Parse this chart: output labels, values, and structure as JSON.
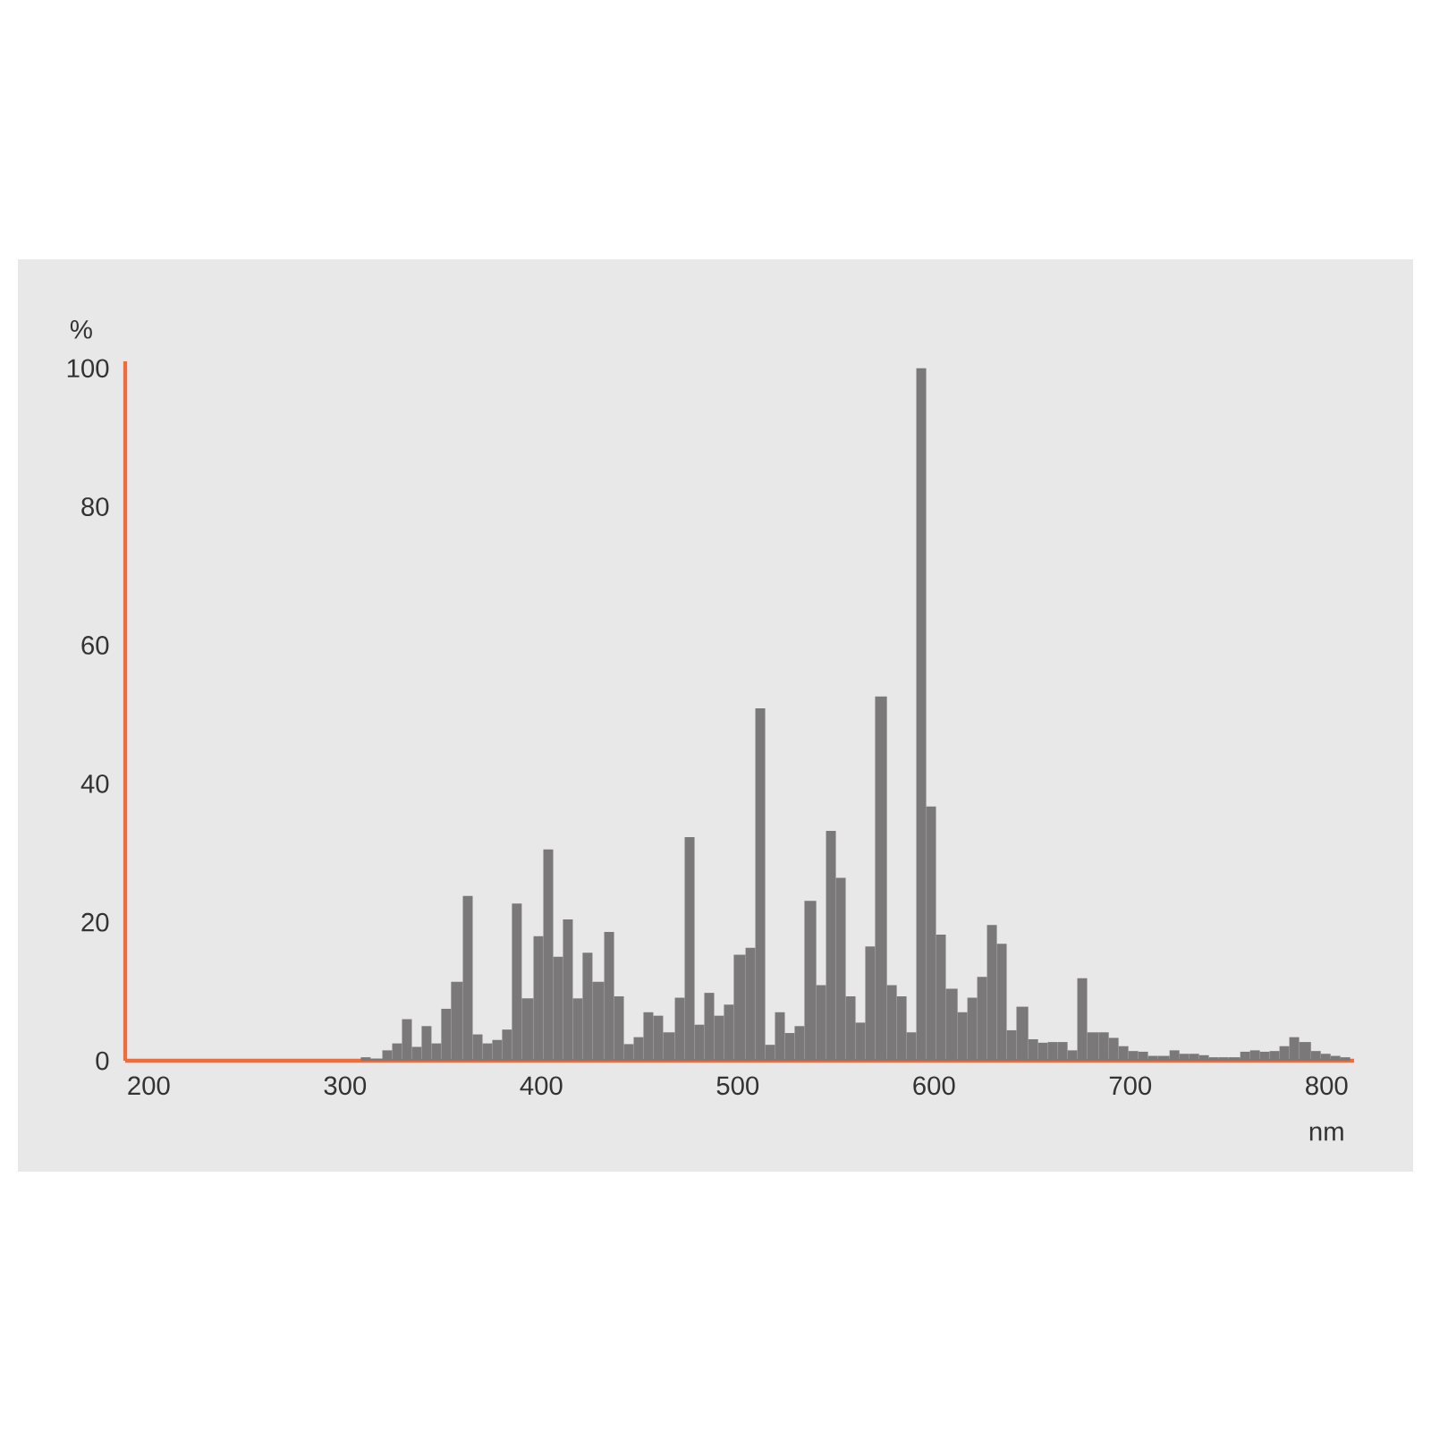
{
  "chart_data": {
    "type": "histogram",
    "xlabel": "nm",
    "ylabel": "%",
    "bins": [
      308,
      313,
      319,
      324,
      329,
      334,
      339,
      344,
      349,
      354,
      360,
      365,
      370,
      375,
      380,
      385,
      390,
      396,
      401,
      406,
      411,
      416,
      421,
      426,
      432,
      437,
      442,
      447,
      452,
      457,
      462,
      468,
      473,
      478,
      483,
      488,
      493,
      498,
      504,
      509,
      514,
      519,
      524,
      529,
      534,
      540,
      545,
      550,
      555,
      560,
      565,
      570,
      576,
      581,
      586,
      591,
      596,
      601,
      606,
      612,
      617,
      622,
      627,
      632,
      637,
      642,
      648,
      653,
      658,
      663,
      668,
      673,
      678,
      684,
      689,
      694,
      699,
      704,
      709,
      714,
      720,
      725,
      730,
      735,
      740,
      745,
      750,
      756,
      761,
      766,
      771,
      776,
      781,
      786,
      792,
      797,
      802,
      807,
      812
    ],
    "values": [
      0.5,
      0.3,
      1.5,
      2.5,
      6,
      2,
      5,
      2.5,
      7.5,
      11.4,
      23.8,
      3.8,
      2.5,
      3,
      4.5,
      22.7,
      9,
      18,
      30.5,
      15,
      20.4,
      9,
      15.6,
      11.4,
      18.6,
      9.3,
      2.4,
      3.4,
      7,
      6.5,
      4.1,
      9.1,
      32.3,
      5.2,
      9.8,
      6.5,
      8.1,
      15.3,
      16.3,
      50.9,
      2.3,
      7,
      4,
      5,
      23.1,
      10.9,
      33.2,
      26.4,
      9.3,
      5.5,
      16.5,
      52.6,
      10.9,
      9.3,
      4.1,
      100,
      36.7,
      18.2,
      10.4,
      7,
      9.1,
      12.1,
      19.6,
      16.9,
      4.4,
      7.8,
      3.1,
      2.6,
      2.7,
      2.7,
      1.5,
      11.9,
      4.1,
      4.1,
      3.3,
      2.1,
      1.4,
      1.3,
      0.7,
      0.7,
      1.5,
      1,
      1,
      0.8,
      0.5,
      0.5,
      0.5,
      1.3,
      1.5,
      1.3,
      1.4,
      2.1,
      3.4,
      2.7,
      1.4,
      1,
      0.7,
      0.5
    ],
    "color": "#7a7878",
    "xlim": [
      188,
      814
    ],
    "ylim": [
      0,
      101
    ],
    "xticks": [
      200,
      300,
      400,
      500,
      600,
      700,
      800
    ],
    "yticks": [
      0,
      20,
      40,
      60,
      80,
      100
    ]
  }
}
